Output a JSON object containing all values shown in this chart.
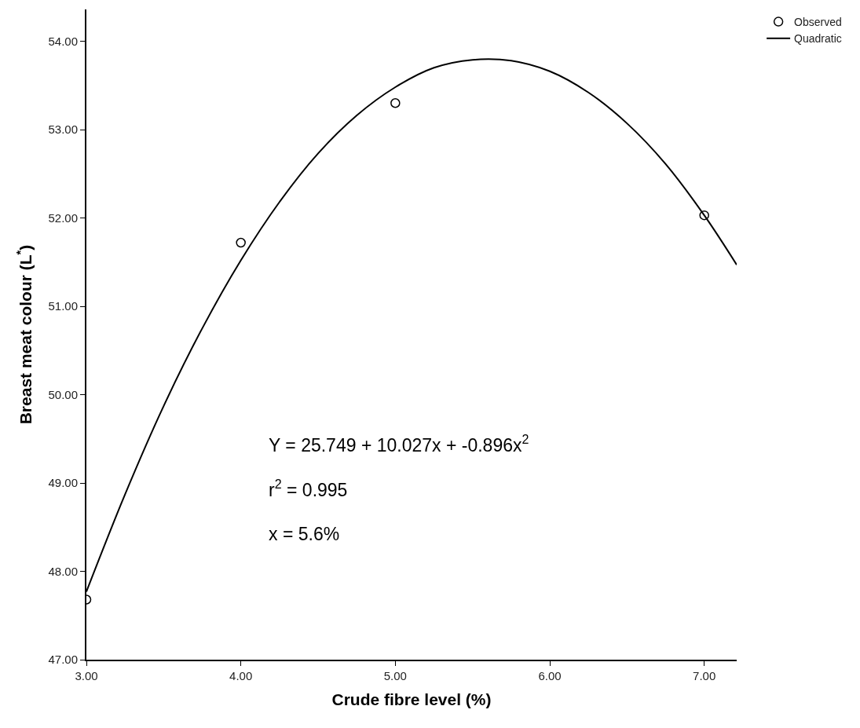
{
  "chart_data": {
    "type": "scatter",
    "xlabel": "Crude fibre level (%)",
    "ylabel": "Breast meat colour (L$^{*}$)",
    "xlim": [
      3.0,
      7.21
    ],
    "xticks": [
      {
        "value": 3,
        "label": "3.00"
      },
      {
        "value": 4,
        "label": "4.00"
      },
      {
        "value": 5,
        "label": "5.00"
      },
      {
        "value": 6,
        "label": "6.00"
      },
      {
        "value": 7,
        "label": "7.00"
      }
    ],
    "ylim": [
      47.0,
      54.36
    ],
    "yticks": [
      {
        "value": 47,
        "label": "47.00"
      },
      {
        "value": 48,
        "label": "48.00"
      },
      {
        "value": 49,
        "label": "49.00"
      },
      {
        "value": 50,
        "label": "50.00"
      },
      {
        "value": 51,
        "label": "51.00"
      },
      {
        "value": 52,
        "label": "52.00"
      },
      {
        "value": 53,
        "label": "53.00"
      },
      {
        "value": 54,
        "label": "54.00"
      }
    ],
    "grid": false,
    "legend": "top right",
    "series": [
      {
        "name": "Observed",
        "marker": "circle",
        "color": "#000000",
        "x": [
          3,
          4,
          5,
          7
        ],
        "values": [
          47.68,
          51.72,
          53.3,
          52.03
        ]
      },
      {
        "name": "Quadratic",
        "type": "line",
        "line_style": "solid",
        "color": "#000000",
        "x": [
          3.0,
          3.25,
          3.5,
          3.75,
          4.0,
          4.25,
          4.5,
          4.75,
          5.0,
          5.25,
          5.5,
          5.75,
          6.0,
          6.25,
          6.5,
          6.75,
          7.0,
          7.21
        ],
        "values": [
          47.77,
          48.87,
          49.87,
          50.75,
          51.52,
          52.18,
          52.73,
          53.16,
          53.48,
          53.7,
          53.79,
          53.78,
          53.66,
          53.42,
          53.07,
          52.61,
          52.03,
          51.47
        ]
      }
    ],
    "annotations": [
      "Y = 25.749 + 10.027x + -0.896x$^{2}$",
      "r$^{2}$ = 0.995",
      "x = 5.6%"
    ]
  }
}
